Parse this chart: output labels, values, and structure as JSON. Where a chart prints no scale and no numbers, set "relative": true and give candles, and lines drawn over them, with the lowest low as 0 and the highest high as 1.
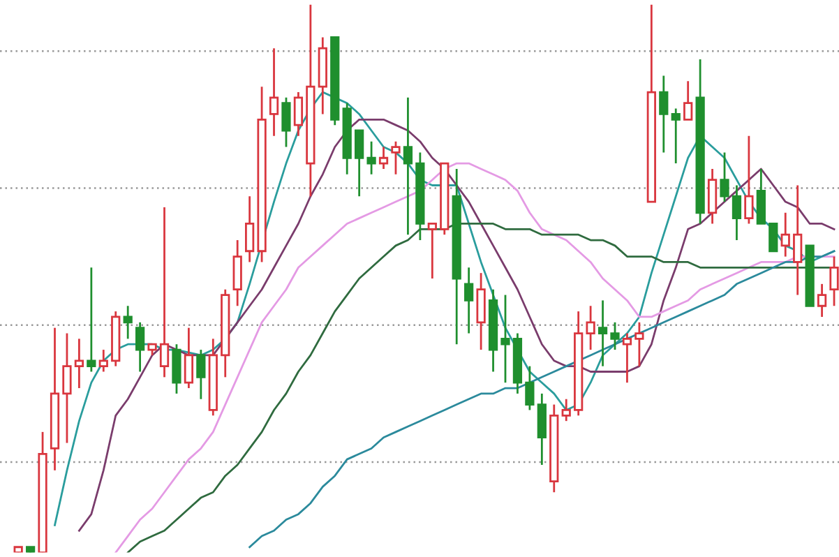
{
  "chart_data": {
    "type": "candlestick",
    "relative": true,
    "grid": "y",
    "categories": [
      null,
      null,
      null,
      null,
      null,
      null,
      null,
      null,
      null,
      null,
      null,
      null,
      null,
      null,
      null,
      null,
      null,
      null,
      null,
      null,
      null,
      null,
      null,
      null,
      null,
      null,
      null,
      null,
      null,
      null,
      null,
      null,
      null,
      null,
      null,
      null,
      null,
      null,
      null,
      null,
      null,
      null,
      null,
      null,
      null,
      null,
      null,
      null,
      null,
      null,
      null,
      null,
      null,
      null,
      null,
      null,
      null,
      null,
      null,
      null,
      null,
      null,
      null,
      null,
      null,
      null,
      null,
      null
    ],
    "ohlc": [
      [
        0.0,
        0.01,
        0,
        0.01
      ],
      [
        0.01,
        0.01,
        0,
        0.0
      ],
      [
        0.0,
        0.22,
        0,
        0.18
      ],
      [
        0.19,
        0.41,
        0.15,
        0.29
      ],
      [
        0.29,
        0.4,
        0.2,
        0.34
      ],
      [
        0.34,
        0.39,
        0.3,
        0.35
      ],
      [
        0.35,
        0.52,
        0.33,
        0.34
      ],
      [
        0.34,
        0.37,
        0.33,
        0.35
      ],
      [
        0.35,
        0.44,
        0.34,
        0.43
      ],
      [
        0.43,
        0.45,
        0.39,
        0.42
      ],
      [
        0.41,
        0.42,
        0.33,
        0.37
      ],
      [
        0.37,
        0.38,
        0.36,
        0.38
      ],
      [
        0.34,
        0.63,
        0.32,
        0.38
      ],
      [
        0.37,
        0.38,
        0.29,
        0.31
      ],
      [
        0.31,
        0.41,
        0.3,
        0.36
      ],
      [
        0.36,
        0.37,
        0.28,
        0.32
      ],
      [
        0.26,
        0.39,
        0.25,
        0.36
      ],
      [
        0.36,
        0.48,
        0.32,
        0.47
      ],
      [
        0.48,
        0.57,
        0.45,
        0.54
      ],
      [
        0.55,
        0.65,
        0.53,
        0.6
      ],
      [
        0.55,
        0.85,
        0.53,
        0.79
      ],
      [
        0.8,
        0.92,
        0.76,
        0.83
      ],
      [
        0.82,
        0.83,
        0.74,
        0.77
      ],
      [
        0.78,
        0.84,
        0.76,
        0.83
      ],
      [
        0.71,
        1,
        0.65,
        0.85
      ],
      [
        0.85,
        0.94,
        0.8,
        0.92
      ],
      [
        0.94,
        0.94,
        0.78,
        0.79
      ],
      [
        0.81,
        0.82,
        0.69,
        0.72
      ],
      [
        0.77,
        0.77,
        0.65,
        0.72
      ],
      [
        0.72,
        0.75,
        0.69,
        0.71
      ],
      [
        0.71,
        0.74,
        0.7,
        0.72
      ],
      [
        0.73,
        0.75,
        0.69,
        0.74
      ],
      [
        0.74,
        0.83,
        0.58,
        0.71
      ],
      [
        0.71,
        0.73,
        0.57,
        0.6
      ],
      [
        0.59,
        0.6,
        0.5,
        0.6
      ],
      [
        0.59,
        0.71,
        0.58,
        0.71
      ],
      [
        0.65,
        0.7,
        0.38,
        0.5
      ],
      [
        0.49,
        0.52,
        0.4,
        0.46
      ],
      [
        0.42,
        0.51,
        0.37,
        0.48
      ],
      [
        0.46,
        0.48,
        0.33,
        0.37
      ],
      [
        0.39,
        0.47,
        0.31,
        0.38
      ],
      [
        0.39,
        0.4,
        0.29,
        0.31
      ],
      [
        0.31,
        0.34,
        0.26,
        0.27
      ],
      [
        0.27,
        0.29,
        0.16,
        0.21
      ],
      [
        0.13,
        0.27,
        0.11,
        0.25
      ],
      [
        0.25,
        0.28,
        0.24,
        0.26
      ],
      [
        0.26,
        0.44,
        0.25,
        0.4
      ],
      [
        0.4,
        0.45,
        0.37,
        0.42
      ],
      [
        0.41,
        0.46,
        0.34,
        0.4
      ],
      [
        0.4,
        0.42,
        0.37,
        0.39
      ],
      [
        0.38,
        0.4,
        0.31,
        0.39
      ],
      [
        0.39,
        0.42,
        0.34,
        0.4
      ],
      [
        0.64,
        1,
        0.64,
        0.84
      ],
      [
        0.84,
        0.87,
        0.73,
        0.8
      ],
      [
        0.8,
        0.81,
        0.71,
        0.79
      ],
      [
        0.79,
        0.86,
        0.79,
        0.82
      ],
      [
        0.83,
        0.9,
        0.6,
        0.62
      ],
      [
        0.62,
        0.7,
        0.6,
        0.68
      ],
      [
        0.68,
        0.73,
        0.64,
        0.65
      ],
      [
        0.65,
        0.67,
        0.57,
        0.61
      ],
      [
        0.61,
        0.76,
        0.6,
        0.65
      ],
      [
        0.66,
        0.7,
        0.6,
        0.6
      ],
      [
        0.6,
        0.6,
        0.55,
        0.55
      ],
      [
        0.56,
        0.62,
        0.54,
        0.58
      ],
      [
        0.53,
        0.67,
        0.47,
        0.58
      ],
      [
        0.56,
        0.56,
        0.45,
        0.45
      ],
      [
        0.45,
        0.49,
        0.43,
        0.47
      ],
      [
        0.48,
        0.54,
        0.45,
        0.52
      ]
    ],
    "colors": [
      "#d9363e",
      "#1f8f2e",
      "#d9363e",
      "#d9363e",
      "#d9363e",
      "#d9363e",
      "#1f8f2e",
      "#d9363e",
      "#d9363e",
      "#1f8f2e",
      "#1f8f2e",
      "#d9363e",
      "#d9363e",
      "#1f8f2e",
      "#d9363e",
      "#1f8f2e",
      "#d9363e",
      "#d9363e",
      "#d9363e",
      "#d9363e",
      "#d9363e",
      "#d9363e",
      "#1f8f2e",
      "#d9363e",
      "#d9363e",
      "#d9363e",
      "#1f8f2e",
      "#1f8f2e",
      "#1f8f2e",
      "#1f8f2e",
      "#d9363e",
      "#d9363e",
      "#1f8f2e",
      "#1f8f2e",
      "#d9363e",
      "#d9363e",
      "#1f8f2e",
      "#1f8f2e",
      "#d9363e",
      "#1f8f2e",
      "#1f8f2e",
      "#1f8f2e",
      "#1f8f2e",
      "#1f8f2e",
      "#d9363e",
      "#d9363e",
      "#d9363e",
      "#d9363e",
      "#1f8f2e",
      "#1f8f2e",
      "#d9363e",
      "#d9363e",
      "#d9363e",
      "#1f8f2e",
      "#1f8f2e",
      "#d9363e",
      "#1f8f2e",
      "#d9363e",
      "#1f8f2e",
      "#1f8f2e",
      "#d9363e",
      "#1f8f2e",
      "#1f8f2e",
      "#d9363e",
      "#d9363e",
      "#1f8f2e",
      "#d9363e",
      "#d9363e"
    ],
    "series": [
      {
        "type": "line",
        "color": "#2a9d9d",
        "values": [
          null,
          null,
          null,
          0.05,
          0.15,
          0.24,
          0.31,
          0.35,
          0.37,
          0.38,
          0.38,
          0.38,
          0.37,
          0.37,
          null,
          0.36,
          0.37,
          0.39,
          0.42,
          0.49,
          null,
          0.64,
          0.71,
          0.77,
          0.81,
          0.84,
          0.83,
          0.82,
          0.8,
          0.77,
          0.74,
          0.73,
          0.71,
          0.68,
          0.67,
          0.67,
          0.67,
          0.6,
          0.53,
          0.47,
          0.41,
          null,
          0.33,
          0.31,
          0.29,
          0.26,
          0.27,
          0.31,
          0.36,
          0.38,
          0.4,
          0.43,
          0.51,
          0.58,
          0.65,
          0.72,
          0.76,
          0.74,
          0.72,
          0.68,
          0.64,
          0.61,
          0.59,
          0.56,
          0.55,
          0.53,
          0.54,
          0.55
        ]
      },
      {
        "type": "line",
        "color": "#7a3c6c",
        "values": [
          null,
          null,
          null,
          null,
          null,
          0.04,
          0.07,
          0.15,
          0.25,
          0.28,
          0.32,
          0.36,
          0.38,
          0.37,
          0.36,
          0.36,
          0.36,
          0.39,
          0.42,
          0.45,
          0.48,
          0.52,
          0.56,
          0.6,
          0.65,
          0.69,
          0.74,
          0.77,
          0.79,
          0.79,
          0.79,
          0.78,
          0.77,
          0.75,
          0.72,
          0.7,
          0.67,
          0.64,
          0.6,
          0.56,
          0.52,
          0.48,
          0.43,
          0.38,
          0.35,
          0.34,
          0.34,
          0.33,
          0.33,
          0.33,
          0.33,
          0.34,
          0.38,
          0.46,
          0.52,
          0.59,
          0.6,
          0.62,
          0.64,
          0.66,
          0.68,
          0.7,
          0.67,
          0.64,
          0.63,
          0.6,
          0.6,
          0.59
        ]
      },
      {
        "type": "line",
        "color": "#e49ae4",
        "values": [
          null,
          null,
          null,
          null,
          null,
          null,
          null,
          null,
          0.0,
          0.03,
          0.06,
          0.08,
          0.11,
          0.14,
          0.17,
          0.19,
          0.22,
          0.27,
          0.32,
          0.37,
          0.42,
          0.45,
          0.48,
          0.52,
          0.54,
          0.56,
          0.58,
          0.6,
          0.61,
          0.62,
          0.63,
          0.64,
          0.65,
          0.66,
          0.68,
          0.7,
          0.71,
          0.71,
          0.7,
          0.69,
          0.68,
          0.66,
          0.62,
          0.59,
          0.58,
          0.57,
          0.55,
          0.53,
          0.5,
          0.48,
          0.46,
          0.43,
          0.43,
          0.44,
          0.45,
          0.46,
          0.48,
          0.49,
          0.5,
          0.51,
          0.52,
          0.53,
          0.53,
          0.53,
          0.54,
          0.54,
          0.54,
          0.54
        ]
      },
      {
        "type": "line",
        "color": "#2f6b3f",
        "values": [
          null,
          null,
          null,
          null,
          null,
          null,
          null,
          null,
          null,
          0.0,
          0.02,
          0.03,
          0.04,
          0.06,
          0.08,
          0.1,
          0.11,
          0.14,
          0.16,
          0.19,
          0.22,
          0.26,
          0.29,
          0.33,
          0.36,
          0.4,
          0.44,
          0.47,
          0.5,
          0.52,
          0.54,
          0.56,
          0.57,
          0.59,
          0.59,
          0.59,
          0.6,
          0.6,
          0.6,
          0.6,
          0.59,
          0.59,
          0.59,
          0.58,
          0.58,
          0.58,
          0.58,
          0.57,
          0.57,
          0.56,
          0.54,
          0.54,
          0.54,
          0.53,
          0.53,
          0.53,
          0.52,
          0.52,
          0.52,
          0.52,
          0.52,
          0.52,
          0.52,
          0.52,
          0.52,
          0.52,
          0.52,
          0.52
        ]
      },
      {
        "type": "line",
        "color": "#2b8a9c",
        "values": [
          null,
          null,
          null,
          null,
          null,
          null,
          null,
          null,
          null,
          null,
          null,
          null,
          null,
          null,
          null,
          null,
          null,
          null,
          null,
          0.01,
          0.03,
          0.04,
          0.06,
          0.07,
          0.09,
          0.12,
          0.14,
          0.17,
          0.18,
          0.19,
          0.21,
          0.22,
          0.23,
          0.24,
          0.25,
          0.26,
          0.27,
          0.28,
          0.29,
          0.29,
          0.3,
          0.3,
          0.31,
          0.32,
          0.33,
          0.34,
          0.35,
          0.36,
          0.37,
          0.38,
          0.39,
          0.4,
          0.41,
          0.42,
          0.43,
          0.44,
          0.45,
          0.46,
          0.47,
          0.49,
          0.5,
          0.51,
          0.52,
          0.53,
          0.53,
          0.54,
          0.54,
          0.55
        ]
      }
    ]
  }
}
